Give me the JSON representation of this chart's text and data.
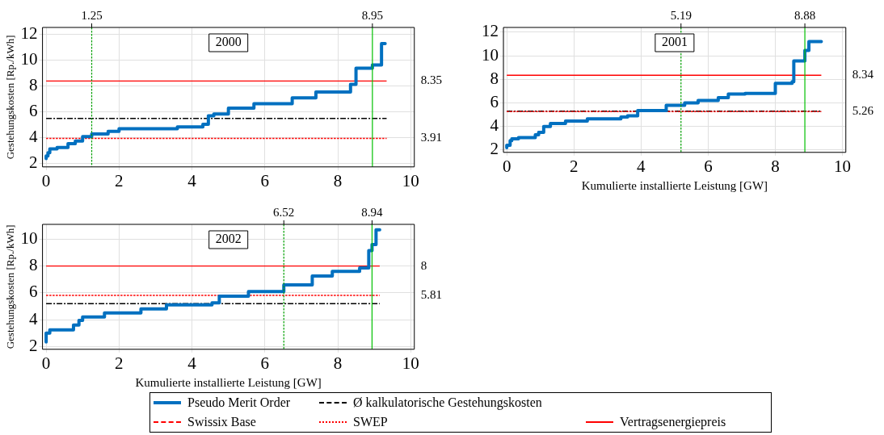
{
  "chart_data": [
    {
      "type": "line",
      "title": "2000",
      "ylabel": "Gestehungskosten [Rp./kWh]",
      "xlim": [
        -0.1,
        10.1
      ],
      "xticks": [
        0,
        2,
        4,
        6,
        8,
        10
      ],
      "ylim": [
        1.7,
        12.5
      ],
      "yticks": [
        2,
        4,
        6,
        8,
        10,
        12
      ],
      "y2lim": [
        1.7,
        12.5
      ],
      "y2ticks": [
        3.91,
        8.35
      ],
      "grid": true,
      "legend": "bottom",
      "marker": "none",
      "series": [
        {
          "name": "Pseudo Merit Order",
          "type": "step",
          "color": "#0070c0",
          "x": [
            0,
            0.05,
            0.1,
            0.3,
            0.6,
            0.8,
            1.0,
            1.25,
            1.7,
            2.0,
            3.6,
            4.3,
            4.45,
            4.6,
            5.0,
            5.7,
            6.75,
            7.4,
            8.35,
            8.5,
            8.95,
            9.2,
            9.3
          ],
          "values": [
            2.35,
            2.55,
            2.8,
            3.1,
            3.2,
            3.5,
            3.7,
            4.05,
            4.25,
            4.45,
            4.65,
            4.8,
            5.0,
            5.65,
            5.8,
            6.25,
            6.6,
            7.05,
            7.5,
            8.1,
            9.35,
            9.6,
            11.25
          ]
        },
        {
          "name": "Ø kalkulatorische Gestehungskosten",
          "color": "#000000",
          "line_style": "dashed",
          "x": [
            0,
            9.34
          ],
          "values": [
            5.45,
            5.45
          ]
        },
        {
          "name": "Swissix Base",
          "color": "#ff0000",
          "line_style": "dashed"
        },
        {
          "name": "SWEP",
          "color": "#ff0000",
          "line_style": "dotted",
          "x": [
            0,
            9.34
          ],
          "values": [
            3.91,
            3.91
          ]
        },
        {
          "name": "Vertragsenergiepreis",
          "color": "#ff0000",
          "line_style": "solid",
          "x": [
            0,
            9.34
          ],
          "values": [
            8.35,
            8.35
          ]
        }
      ],
      "ref_lines": [
        {
          "axis": "x",
          "value": 1.25,
          "label": "1.25",
          "color": "#00a000",
          "line_style": "dotted"
        },
        {
          "axis": "x",
          "value": 8.95,
          "label": "8.95",
          "color": "#00c000",
          "line_style": "solid"
        }
      ]
    },
    {
      "type": "line",
      "title": "2001",
      "xlabel": "Kumulierte installierte Leistung [GW]",
      "xlim": [
        -0.1,
        10.1
      ],
      "xticks": [
        0,
        2,
        4,
        6,
        8,
        10
      ],
      "ylim": [
        1.8,
        12.4
      ],
      "yticks": [
        2,
        4,
        6,
        8,
        10,
        12
      ],
      "y2lim": [
        1.8,
        12.4
      ],
      "y2ticks": [
        5.26,
        8.34
      ],
      "grid": true,
      "marker": "none",
      "series": [
        {
          "type": "step",
          "color": "#0070c0",
          "x": [
            0,
            0.1,
            0.15,
            0.35,
            0.85,
            0.95,
            1.1,
            1.3,
            1.75,
            2.4,
            3.4,
            3.6,
            3.9,
            4.75,
            5.3,
            5.7,
            6.3,
            6.6,
            7.1,
            8.0,
            8.5,
            8.55,
            8.88,
            9.0,
            9.37
          ],
          "values": [
            2.2,
            2.4,
            2.8,
            2.95,
            3.05,
            3.3,
            3.5,
            4.0,
            4.25,
            4.45,
            4.65,
            4.8,
            4.9,
            5.35,
            5.8,
            6.0,
            6.2,
            6.45,
            6.75,
            6.8,
            7.65,
            7.8,
            9.55,
            10.45,
            11.2
          ]
        },
        {
          "color": "#ff0000",
          "line_style": "dotted",
          "x": [
            0,
            9.37
          ],
          "values": [
            5.26,
            5.26
          ]
        },
        {
          "color": "#000000",
          "line_style": "dashed",
          "x": [
            0,
            9.37
          ],
          "values": [
            5.3,
            5.3
          ]
        },
        {
          "color": "#ff0000",
          "line_style": "solid",
          "x": [
            0,
            9.37
          ],
          "values": [
            8.34,
            8.34
          ]
        }
      ],
      "ref_lines": [
        {
          "axis": "x",
          "value": 5.19,
          "label": "5.19",
          "color": "#00a000",
          "line_style": "dotted"
        },
        {
          "axis": "x",
          "value": 8.88,
          "label": "8.88",
          "color": "#00c000",
          "line_style": "solid"
        }
      ]
    },
    {
      "type": "line",
      "title": "2002",
      "xlabel": "Kumulierte installierte Leistung [GW]",
      "ylabel": "Gestehungskosten [Rp./kWh]",
      "xlim": [
        -0.1,
        10.1
      ],
      "xticks": [
        0,
        2,
        4,
        6,
        8,
        10
      ],
      "ylim": [
        1.8,
        11.1
      ],
      "yticks": [
        2,
        4,
        6,
        8,
        10
      ],
      "y2lim": [
        1.8,
        11.1
      ],
      "y2ticks": [
        5.81,
        8
      ],
      "grid": true,
      "marker": "none",
      "series": [
        {
          "type": "step",
          "color": "#0070c0",
          "x": [
            0,
            0.1,
            0.75,
            0.9,
            1.0,
            1.6,
            2.6,
            3.3,
            4.55,
            4.75,
            5.55,
            6.52,
            7.3,
            7.85,
            8.6,
            8.85,
            8.94,
            9.05,
            9.15
          ],
          "values": [
            2.35,
            3.0,
            3.25,
            3.6,
            3.95,
            4.2,
            4.5,
            4.8,
            5.1,
            5.25,
            5.75,
            6.1,
            6.6,
            7.25,
            7.6,
            7.85,
            9.15,
            9.6,
            10.7
          ]
        },
        {
          "color": "#000000",
          "line_style": "dashed",
          "x": [
            0,
            9.15
          ],
          "values": [
            5.2,
            5.2
          ]
        },
        {
          "color": "#ff0000",
          "line_style": "dotted",
          "x": [
            0,
            9.15
          ],
          "values": [
            5.81,
            5.81
          ]
        },
        {
          "color": "#ff0000",
          "line_style": "solid",
          "x": [
            0,
            9.15
          ],
          "values": [
            8,
            8
          ]
        }
      ],
      "ref_lines": [
        {
          "axis": "x",
          "value": 6.52,
          "label": "6.52",
          "color": "#00a000",
          "line_style": "dotted"
        },
        {
          "axis": "x",
          "value": 8.94,
          "label": "8.94",
          "color": "#00c000",
          "line_style": "solid"
        }
      ]
    }
  ]
}
